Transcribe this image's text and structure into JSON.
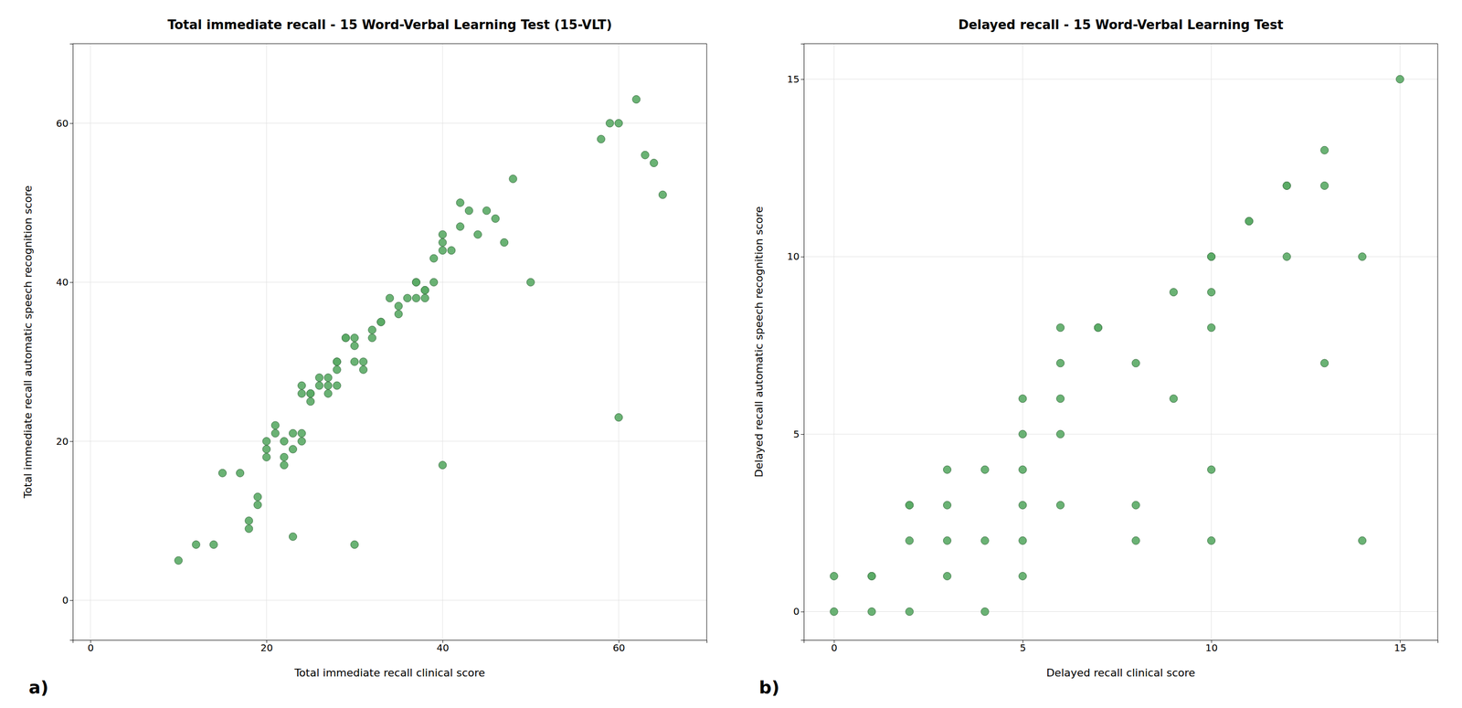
{
  "chart_data": [
    {
      "type": "scatter",
      "title": "Total immediate recall - 15 Word-Verbal Learning Test (15-VLT)",
      "xlabel": "Total immediate recall clinical score",
      "ylabel": "Total immediate recall automatic speech recognition score",
      "xlim": [
        -2,
        70
      ],
      "ylim": [
        -5,
        70
      ],
      "xticks": [
        0,
        20,
        40,
        60
      ],
      "yticks": [
        0,
        20,
        40,
        60
      ],
      "x": [
        10,
        12,
        14,
        15,
        17,
        18,
        18,
        19,
        19,
        20,
        20,
        20,
        21,
        21,
        22,
        22,
        22,
        23,
        23,
        23,
        24,
        24,
        24,
        24,
        25,
        25,
        25,
        26,
        26,
        27,
        27,
        27,
        28,
        28,
        28,
        28,
        29,
        29,
        30,
        30,
        30,
        31,
        31,
        32,
        32,
        33,
        33,
        34,
        35,
        35,
        36,
        37,
        37,
        37,
        38,
        38,
        38,
        39,
        39,
        40,
        40,
        40,
        41,
        42,
        42,
        43,
        44,
        45,
        46,
        47,
        48,
        50,
        58,
        59,
        60,
        60,
        62,
        63,
        64,
        65,
        30,
        40
      ],
      "y": [
        5,
        7,
        7,
        16,
        16,
        9,
        10,
        13,
        12,
        18,
        19,
        20,
        22,
        21,
        17,
        18,
        20,
        21,
        19,
        8,
        26,
        27,
        21,
        20,
        26,
        25,
        26,
        27,
        28,
        26,
        27,
        28,
        27,
        30,
        30,
        29,
        33,
        33,
        30,
        32,
        33,
        29,
        30,
        34,
        33,
        35,
        35,
        38,
        37,
        36,
        38,
        40,
        40,
        38,
        39,
        38,
        39,
        40,
        43,
        44,
        45,
        46,
        44,
        47,
        50,
        49,
        46,
        49,
        48,
        45,
        53,
        40,
        58,
        60,
        60,
        23,
        63,
        56,
        55,
        51,
        7,
        17
      ],
      "color": "#5aaa65",
      "grid": true,
      "annotations": [
        "a)"
      ]
    },
    {
      "type": "scatter",
      "title": "Delayed recall - 15 Word-Verbal Learning Test",
      "xlabel": "Delayed recall clinical score",
      "ylabel": "Delayed recall automatic speech recognition score",
      "xlim": [
        -0.8,
        16
      ],
      "ylim": [
        -0.8,
        16
      ],
      "xticks": [
        0,
        5,
        10,
        15
      ],
      "yticks": [
        0,
        5,
        10,
        15
      ],
      "x": [
        0,
        0,
        1,
        1,
        1,
        2,
        2,
        2,
        2,
        3,
        3,
        3,
        3,
        4,
        4,
        4,
        5,
        5,
        5,
        5,
        5,
        5,
        6,
        6,
        6,
        6,
        6,
        7,
        7,
        8,
        8,
        8,
        9,
        9,
        10,
        10,
        10,
        10,
        10,
        10,
        11,
        11,
        12,
        12,
        12,
        13,
        13,
        13,
        14,
        14,
        15
      ],
      "y": [
        0,
        1,
        0,
        1,
        1,
        0,
        3,
        3,
        2,
        2,
        4,
        3,
        1,
        2,
        4,
        0,
        5,
        6,
        2,
        4,
        1,
        3,
        8,
        5,
        7,
        6,
        3,
        8,
        8,
        7,
        3,
        2,
        9,
        6,
        10,
        10,
        9,
        4,
        8,
        2,
        11,
        11,
        12,
        12,
        10,
        12,
        13,
        7,
        10,
        2,
        15
      ],
      "color": "#5aaa65",
      "grid": true,
      "annotations": [
        "b)"
      ]
    }
  ]
}
